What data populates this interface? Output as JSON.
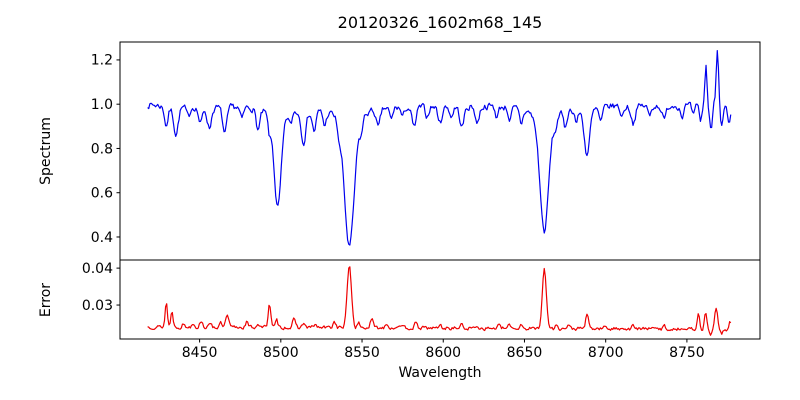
{
  "title": "20120326_1602m68_145",
  "colors": {
    "spectrum_line": "#0000ee",
    "error_line": "#ee0000",
    "axis": "#000000",
    "background": "#ffffff"
  },
  "chart_data": [
    {
      "type": "line",
      "panel": "spectrum",
      "title": "20120326_1602m68_145",
      "ylabel": "Spectrum",
      "xlabel": "",
      "legend": "none",
      "grid": false,
      "x_range": [
        8401,
        8795
      ],
      "y_range": [
        0.296,
        1.281
      ],
      "y_ticks": [
        0.4,
        0.6,
        0.8,
        1.0,
        1.2
      ],
      "y_tick_labels": [
        "0.4",
        "0.6",
        "0.8",
        "1.0",
        "1.2"
      ],
      "x_ticks": [
        8450,
        8500,
        8550,
        8600,
        8650,
        8700,
        8750
      ],
      "x_tick_labels": [],
      "show_x_ticks": false,
      "line_color": "#0000ee",
      "series": {
        "name": "spectrum",
        "x_start": 8418,
        "x_end": 8777,
        "n_points": 520,
        "continuum": 1.0,
        "noise_amplitude": 0.013,
        "noise_seed": 7,
        "absorption_lines": [
          {
            "center": 8429.5,
            "depth": 0.09,
            "width": 1.0
          },
          {
            "center": 8435.5,
            "depth": 0.13,
            "width": 1.3
          },
          {
            "center": 8443.0,
            "depth": 0.05,
            "width": 1.0
          },
          {
            "center": 8450.5,
            "depth": 0.08,
            "width": 1.1
          },
          {
            "center": 8456.0,
            "depth": 0.1,
            "width": 1.2
          },
          {
            "center": 8465.5,
            "depth": 0.13,
            "width": 1.2
          },
          {
            "center": 8476.0,
            "depth": 0.06,
            "width": 1.0
          },
          {
            "center": 8486.0,
            "depth": 0.1,
            "width": 1.1
          },
          {
            "center": 8493.0,
            "depth": 0.08,
            "width": 0.9
          },
          {
            "center": 8498.1,
            "depth": 0.46,
            "width": 2.1
          },
          {
            "center": 8506.0,
            "depth": 0.06,
            "width": 0.9
          },
          {
            "center": 8514.0,
            "depth": 0.15,
            "width": 1.4
          },
          {
            "center": 8520.5,
            "depth": 0.1,
            "width": 1.1
          },
          {
            "center": 8527.0,
            "depth": 0.07,
            "width": 1.0
          },
          {
            "center": 8536.0,
            "depth": 0.06,
            "width": 0.9
          },
          {
            "center": 8542.2,
            "depth": 0.64,
            "width": 2.9
          },
          {
            "center": 8549.5,
            "depth": 0.06,
            "width": 0.9
          },
          {
            "center": 8560.0,
            "depth": 0.09,
            "width": 1.1
          },
          {
            "center": 8568.0,
            "depth": 0.06,
            "width": 0.9
          },
          {
            "center": 8575.0,
            "depth": 0.05,
            "width": 0.9
          },
          {
            "center": 8582.0,
            "depth": 0.1,
            "width": 1.2
          },
          {
            "center": 8590.0,
            "depth": 0.05,
            "width": 0.9
          },
          {
            "center": 8598.0,
            "depth": 0.08,
            "width": 1.1
          },
          {
            "center": 8605.0,
            "depth": 0.05,
            "width": 0.9
          },
          {
            "center": 8611.5,
            "depth": 0.1,
            "width": 1.2
          },
          {
            "center": 8621.0,
            "depth": 0.08,
            "width": 1.1
          },
          {
            "center": 8633.0,
            "depth": 0.05,
            "width": 0.9
          },
          {
            "center": 8641.0,
            "depth": 0.06,
            "width": 0.9
          },
          {
            "center": 8648.0,
            "depth": 0.07,
            "width": 1.0
          },
          {
            "center": 8662.2,
            "depth": 0.57,
            "width": 2.6
          },
          {
            "center": 8669.0,
            "depth": 0.06,
            "width": 0.9
          },
          {
            "center": 8675.0,
            "depth": 0.08,
            "width": 1.0
          },
          {
            "center": 8682.0,
            "depth": 0.06,
            "width": 0.9
          },
          {
            "center": 8688.5,
            "depth": 0.22,
            "width": 1.6
          },
          {
            "center": 8697.0,
            "depth": 0.07,
            "width": 1.0
          },
          {
            "center": 8710.0,
            "depth": 0.05,
            "width": 0.9
          },
          {
            "center": 8717.0,
            "depth": 0.08,
            "width": 1.2
          },
          {
            "center": 8727.0,
            "depth": 0.05,
            "width": 0.9
          },
          {
            "center": 8736.0,
            "depth": 0.07,
            "width": 1.1
          },
          {
            "center": 8747.0,
            "depth": 0.05,
            "width": 0.9
          },
          {
            "center": 8754.0,
            "depth": 0.05,
            "width": 0.8
          },
          {
            "center": 8758.5,
            "depth": 0.07,
            "width": 0.7
          },
          {
            "center": 8765.0,
            "depth": 0.12,
            "width": 0.8
          },
          {
            "center": 8771.5,
            "depth": 0.09,
            "width": 0.8
          },
          {
            "center": 8776.0,
            "depth": 0.1,
            "width": 0.8
          }
        ],
        "emission_lines": [
          {
            "center": 8761.7,
            "height": 0.19,
            "width": 0.65
          },
          {
            "center": 8766.5,
            "height": 0.05,
            "width": 0.5
          },
          {
            "center": 8768.8,
            "height": 0.27,
            "width": 0.75
          }
        ]
      }
    },
    {
      "type": "line",
      "panel": "error",
      "ylabel": "Error",
      "xlabel": "Wavelength",
      "legend": "none",
      "grid": false,
      "x_range": [
        8401,
        8795
      ],
      "y_range": [
        0.0208,
        0.0422
      ],
      "y_ticks": [
        0.03,
        0.04
      ],
      "y_tick_labels": [
        "0.03",
        "0.04"
      ],
      "x_ticks": [
        8450,
        8500,
        8550,
        8600,
        8650,
        8700,
        8750
      ],
      "x_tick_labels": [
        "8450",
        "8500",
        "8550",
        "8600",
        "8650",
        "8700",
        "8750"
      ],
      "show_x_ticks": true,
      "line_color": "#ee0000",
      "series": {
        "name": "error",
        "x_start": 8418,
        "x_end": 8777,
        "n_points": 520,
        "baseline_start": 0.0241,
        "baseline_end": 0.0234,
        "noise_amplitude": 0.00045,
        "noise_seed": 13,
        "peaks": [
          {
            "center": 8429.5,
            "height": 0.0066,
            "width": 0.7
          },
          {
            "center": 8433.0,
            "height": 0.0042,
            "width": 0.7
          },
          {
            "center": 8440.0,
            "height": 0.0008,
            "width": 0.7
          },
          {
            "center": 8446.0,
            "height": 0.0012,
            "width": 0.8
          },
          {
            "center": 8451.0,
            "height": 0.0018,
            "width": 0.8
          },
          {
            "center": 8457.0,
            "height": 0.0012,
            "width": 0.7
          },
          {
            "center": 8463.0,
            "height": 0.001,
            "width": 0.7
          },
          {
            "center": 8467.0,
            "height": 0.003,
            "width": 0.9
          },
          {
            "center": 8479.0,
            "height": 0.0014,
            "width": 0.8
          },
          {
            "center": 8486.0,
            "height": 0.001,
            "width": 0.8
          },
          {
            "center": 8493.0,
            "height": 0.0066,
            "width": 0.8
          },
          {
            "center": 8497.5,
            "height": 0.0018,
            "width": 0.7
          },
          {
            "center": 8508.0,
            "height": 0.002,
            "width": 0.9
          },
          {
            "center": 8514.0,
            "height": 0.0012,
            "width": 0.8
          },
          {
            "center": 8521.0,
            "height": 0.0008,
            "width": 0.8
          },
          {
            "center": 8533.0,
            "height": 0.0016,
            "width": 0.9
          },
          {
            "center": 8542.2,
            "height": 0.017,
            "width": 1.3
          },
          {
            "center": 8548.0,
            "height": 0.0012,
            "width": 0.8
          },
          {
            "center": 8556.0,
            "height": 0.0022,
            "width": 0.9
          },
          {
            "center": 8565.0,
            "height": 0.0014,
            "width": 0.8
          },
          {
            "center": 8572.0,
            "height": 0.0008,
            "width": 0.8
          },
          {
            "center": 8583.0,
            "height": 0.0012,
            "width": 0.8
          },
          {
            "center": 8598.0,
            "height": 0.0008,
            "width": 0.8
          },
          {
            "center": 8611.0,
            "height": 0.001,
            "width": 0.8
          },
          {
            "center": 8621.0,
            "height": 0.0008,
            "width": 0.8
          },
          {
            "center": 8634.0,
            "height": 0.0008,
            "width": 0.8
          },
          {
            "center": 8641.0,
            "height": 0.001,
            "width": 0.8
          },
          {
            "center": 8648.0,
            "height": 0.0012,
            "width": 0.8
          },
          {
            "center": 8662.2,
            "height": 0.016,
            "width": 1.25
          },
          {
            "center": 8670.0,
            "height": 0.001,
            "width": 0.8
          },
          {
            "center": 8677.0,
            "height": 0.0008,
            "width": 0.8
          },
          {
            "center": 8688.5,
            "height": 0.0036,
            "width": 0.9
          },
          {
            "center": 8700.0,
            "height": 0.0007,
            "width": 0.8
          },
          {
            "center": 8710.0,
            "height": 0.0006,
            "width": 0.8
          },
          {
            "center": 8717.0,
            "height": 0.0009,
            "width": 0.8
          },
          {
            "center": 8727.0,
            "height": 0.0006,
            "width": 0.8
          },
          {
            "center": 8736.0,
            "height": 0.0009,
            "width": 0.8
          },
          {
            "center": 8747.0,
            "height": 0.0007,
            "width": 0.8
          },
          {
            "center": 8757.0,
            "height": 0.004,
            "width": 0.8
          },
          {
            "center": 8761.5,
            "height": 0.0048,
            "width": 0.7
          },
          {
            "center": 8764.5,
            "height": -0.0013,
            "width": 0.6
          },
          {
            "center": 8768.0,
            "height": 0.006,
            "width": 0.8
          },
          {
            "center": 8771.5,
            "height": -0.0015,
            "width": 0.7
          },
          {
            "center": 8776.5,
            "height": 0.0022,
            "width": 0.7
          }
        ]
      }
    }
  ]
}
